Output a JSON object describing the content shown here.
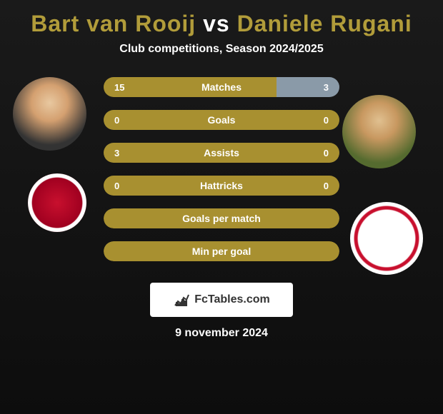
{
  "title": {
    "player1": "Bart van Rooij",
    "vs": "vs",
    "player2": "Daniele Rugani"
  },
  "subtitle": "Club competitions, Season 2024/2025",
  "stats": [
    {
      "label": "Matches",
      "left_value": "15",
      "right_value": "3",
      "left_pct": 83.3,
      "right_pct": 16.7,
      "left_color": "#a89030",
      "center_color": "#a89030",
      "right_color": "#8a9aa8"
    },
    {
      "label": "Goals",
      "left_value": "0",
      "right_value": "0",
      "left_pct": 50,
      "right_pct": 50,
      "left_color": "#a89030",
      "center_color": "#a89030",
      "right_color": "#a89030"
    },
    {
      "label": "Assists",
      "left_value": "3",
      "right_value": "0",
      "left_pct": 100,
      "right_pct": 0,
      "left_color": "#a89030",
      "center_color": "#a89030",
      "right_color": "#a89030"
    },
    {
      "label": "Hattricks",
      "left_value": "0",
      "right_value": "0",
      "left_pct": 50,
      "right_pct": 50,
      "left_color": "#a89030",
      "center_color": "#a89030",
      "right_color": "#a89030"
    }
  ],
  "full_stats": [
    {
      "label": "Goals per match"
    },
    {
      "label": "Min per goal"
    }
  ],
  "footer": {
    "brand": "FcTables.com"
  },
  "date": "9 november 2024",
  "colors": {
    "accent": "#b19c3a",
    "bar_primary": "#a89030",
    "bar_secondary": "#8a9aa8",
    "background": "#1a1a1a"
  }
}
